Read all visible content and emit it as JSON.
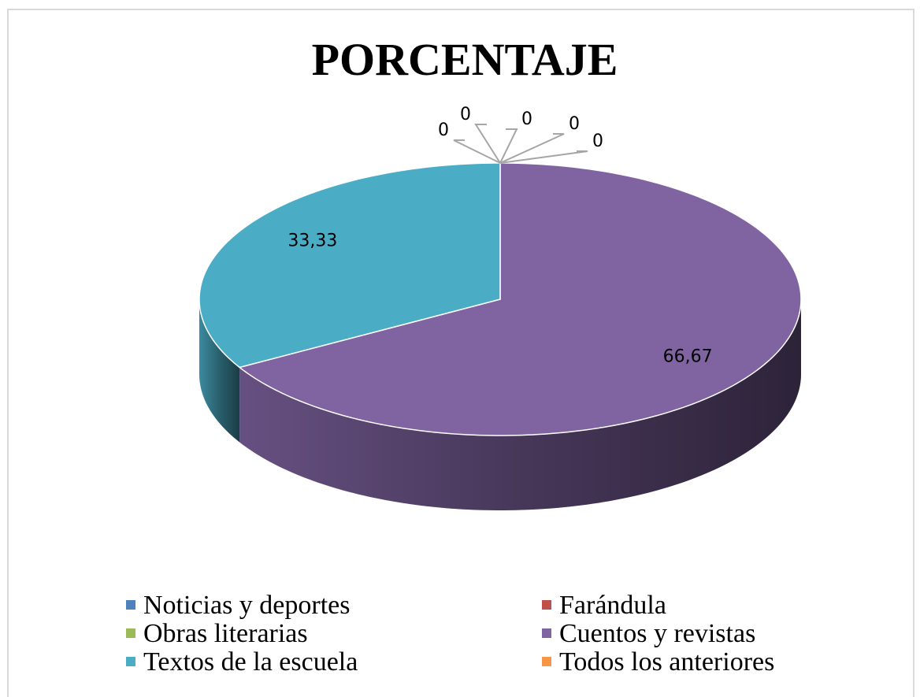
{
  "chart_data": {
    "type": "pie",
    "title": "PORCENTAJE",
    "categories": [
      "Noticias y deportes",
      "Farándula",
      "Obras literarias",
      "Cuentos y revistas",
      "Textos de la escuela",
      "Todos los anteriores",
      null
    ],
    "values": [
      0,
      0,
      0,
      66.67,
      33.33,
      0,
      0
    ],
    "value_labels": [
      "0",
      "0",
      "0",
      "66,67",
      "33,33",
      "0",
      "0"
    ],
    "colors": [
      "#4f81bd",
      "#c0504d",
      "#9bbb59",
      "#8064a2",
      "#4bacc6",
      "#f79646",
      "#2c4d75"
    ],
    "legend": "bottom"
  }
}
